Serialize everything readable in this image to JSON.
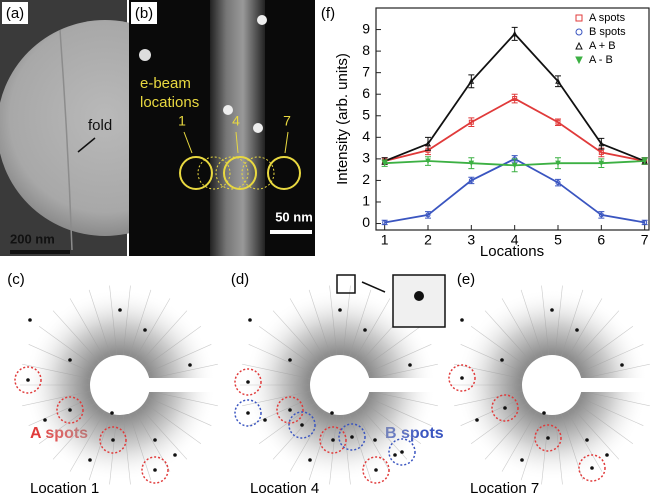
{
  "chart_data": {
    "type": "line",
    "panel_label": "(f)",
    "x_label": "Locations",
    "y_label": "Intensity (arb. units)",
    "x": [
      1,
      2,
      3,
      4,
      5,
      6,
      7
    ],
    "xlim": [
      0.8,
      7.1
    ],
    "xticks": [
      1,
      2,
      3,
      4,
      5,
      6,
      7
    ],
    "ylim": [
      -0.3,
      10
    ],
    "yticks": [
      0,
      1,
      2,
      3,
      4,
      5,
      6,
      7,
      8,
      9
    ],
    "legend": "upper right",
    "series": [
      {
        "name": "A spots",
        "color": "#e03a3a",
        "marker": "square",
        "values": [
          2.9,
          3.4,
          4.7,
          5.8,
          4.7,
          3.3,
          2.9
        ],
        "errors": [
          0.15,
          0.2,
          0.2,
          0.2,
          0.15,
          0.2,
          0.15
        ]
      },
      {
        "name": "B spots",
        "color": "#3a55c0",
        "marker": "circle",
        "values": [
          0.05,
          0.4,
          2.0,
          3.0,
          1.9,
          0.4,
          0.05
        ],
        "errors": [
          0.1,
          0.15,
          0.15,
          0.15,
          0.15,
          0.15,
          0.1
        ]
      },
      {
        "name": "A + B",
        "color": "#111111",
        "marker": "triangle",
        "values": [
          2.9,
          3.7,
          6.6,
          8.8,
          6.6,
          3.7,
          2.9
        ],
        "errors": [
          0.15,
          0.3,
          0.3,
          0.3,
          0.25,
          0.25,
          0.15
        ]
      },
      {
        "name": "A - B",
        "color": "#3cb043",
        "marker": "triangle-down",
        "values": [
          2.8,
          2.9,
          2.8,
          2.7,
          2.8,
          2.8,
          2.9
        ],
        "errors": [
          0.15,
          0.2,
          0.25,
          0.3,
          0.25,
          0.2,
          0.15
        ]
      }
    ]
  },
  "panels": {
    "a": {
      "label": "(a)",
      "annotation": "fold",
      "scale_bar": "200 nm"
    },
    "b": {
      "label": "(b)",
      "annotation_line1": "e-beam",
      "annotation_line2": "locations",
      "locations": [
        "1",
        "4",
        "7"
      ],
      "scale_bar": "50 nm"
    },
    "c": {
      "label": "(c)",
      "annotation": "A spots",
      "caption": "Location 1"
    },
    "d": {
      "label": "(d)",
      "annotation": "B spots",
      "caption": "Location 4"
    },
    "e": {
      "label": "(e)",
      "caption": "Location 7"
    }
  }
}
